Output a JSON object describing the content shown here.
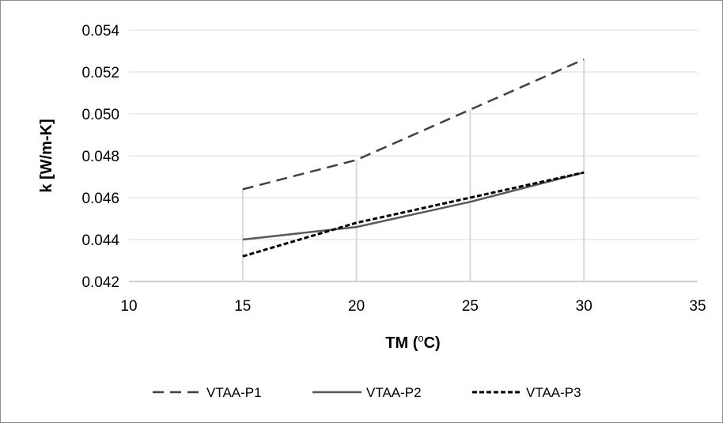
{
  "chart_data": {
    "type": "scatter",
    "xlabel": "TM (",
    "xlabel_sup": "o",
    "xlabel_tail": "C)",
    "ylabel": "k [W/m-K]",
    "xlim": [
      10,
      35
    ],
    "ylim": [
      0.042,
      0.054
    ],
    "x_ticks": [
      "10",
      "15",
      "20",
      "25",
      "30",
      "35"
    ],
    "y_ticks": [
      "0.042",
      "0.044",
      "0.046",
      "0.048",
      "0.050",
      "0.052",
      "0.054"
    ],
    "grid": {
      "horizontal": true,
      "vertical_drop_lines": true
    },
    "legend_position": "bottom",
    "series": [
      {
        "name": "VTAA-P1",
        "line_style": "long-dash",
        "color": "#404040",
        "x": [
          15,
          20,
          25,
          30
        ],
        "y": [
          0.0464,
          0.0478,
          0.0502,
          0.0526
        ]
      },
      {
        "name": "VTAA-P2",
        "line_style": "solid",
        "color": "#595959",
        "x": [
          15,
          20,
          25,
          30
        ],
        "y": [
          0.044,
          0.0446,
          0.0458,
          0.0472
        ]
      },
      {
        "name": "VTAA-P3",
        "line_style": "short-dash",
        "color": "#000000",
        "x": [
          15,
          20,
          25,
          30
        ],
        "y": [
          0.0432,
          0.0448,
          0.046,
          0.0472
        ]
      }
    ]
  }
}
